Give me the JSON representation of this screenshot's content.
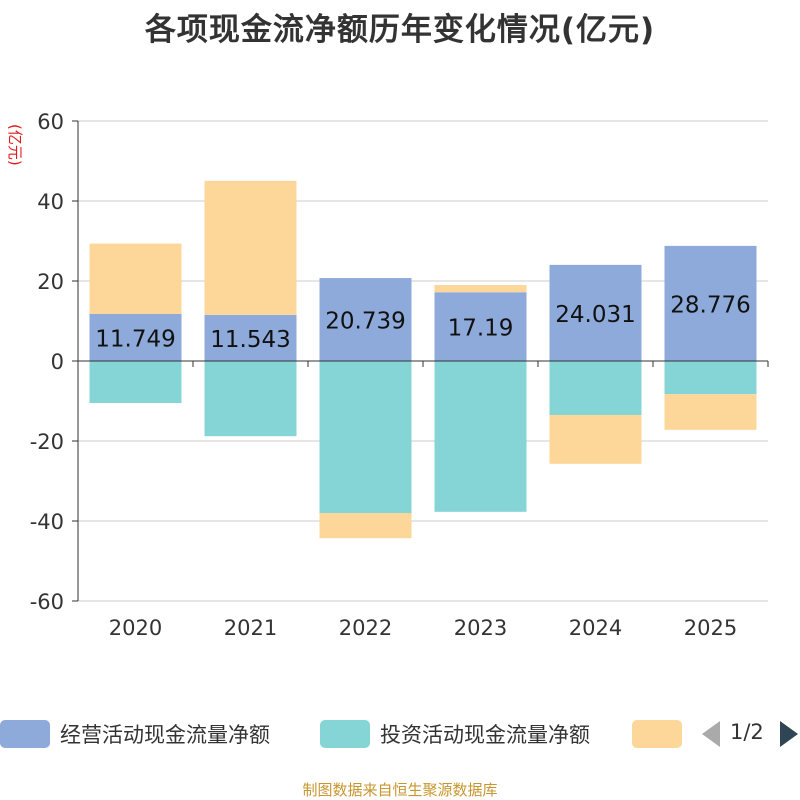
{
  "chart_data": {
    "type": "bar",
    "stacked": true,
    "title": "各项现金流净额历年变化情况(亿元)",
    "ylabel": "(亿元)",
    "xlabel": "",
    "ylim": [
      -60,
      60
    ],
    "yticks": [
      60,
      40,
      20,
      0,
      -20,
      -40,
      -60
    ],
    "categories": [
      "2020",
      "2021",
      "2022",
      "2023",
      "2024",
      "2025"
    ],
    "series": [
      {
        "name": "经营活动现金流量净额",
        "color": "#8eaadb",
        "values": [
          11.749,
          11.543,
          20.739,
          17.19,
          24.031,
          28.776
        ],
        "labels": [
          "11.749",
          "11.543",
          "20.739",
          "17.19",
          "24.031",
          "28.776"
        ]
      },
      {
        "name": "投资活动现金流量净额",
        "color": "#85d4d6",
        "values": [
          -10.5,
          -18.8,
          -38.0,
          -37.7,
          -13.5,
          -8.3
        ]
      },
      {
        "name": "",
        "color": "#fcd799",
        "values": [
          17.6,
          33.5,
          -6.3,
          1.8,
          -12.2,
          -8.9
        ]
      }
    ],
    "legend_position": "bottom",
    "grid": true
  },
  "legend": {
    "page": "1/2"
  },
  "source": "制图数据来自恒生聚源数据库"
}
